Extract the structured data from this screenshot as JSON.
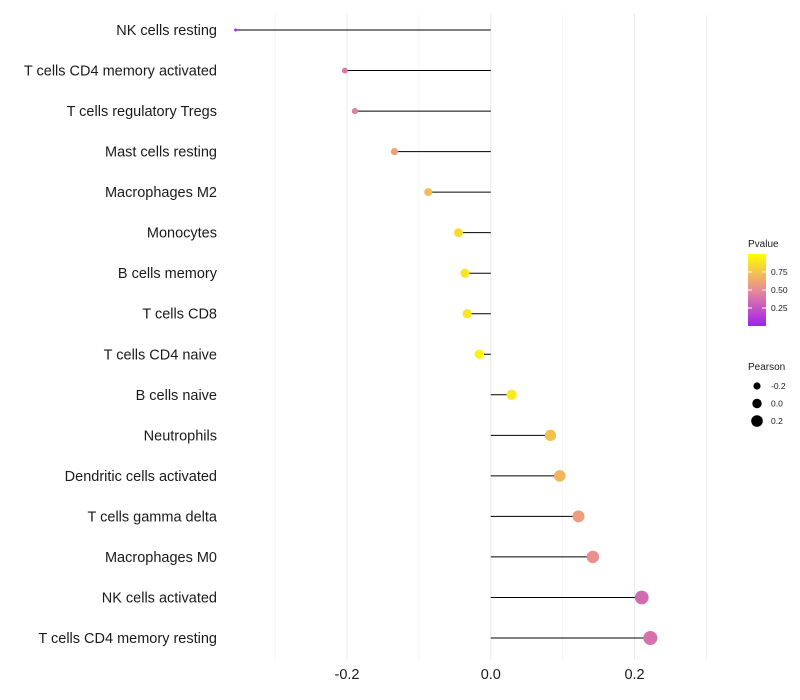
{
  "chart_data": {
    "type": "scatter",
    "subtype": "lollipop",
    "title": "",
    "xlabel": "",
    "ylabel": "",
    "xlim": [
      -0.36,
      0.33
    ],
    "x_ticks": [
      {
        "value": -0.2,
        "label": "-0.2"
      },
      {
        "value": 0.0,
        "label": "0.0"
      },
      {
        "value": 0.2,
        "label": "0.2"
      }
    ],
    "grid": true,
    "categories": [
      "NK cells resting",
      "T cells CD4 memory activated",
      "T cells regulatory  Tregs",
      "Mast cells resting",
      "Macrophages M2",
      "Monocytes",
      "B cells memory",
      "T cells CD8",
      "T cells CD4 naive",
      "B cells naive",
      "Neutrophils",
      "Dendritic cells activated",
      "T cells gamma delta",
      "Macrophages M0",
      "NK cells activated",
      "T cells CD4 memory resting"
    ],
    "pearson": [
      -0.355,
      -0.203,
      -0.189,
      -0.134,
      -0.087,
      -0.045,
      -0.036,
      -0.033,
      -0.016,
      0.029,
      0.083,
      0.096,
      0.122,
      0.142,
      0.21,
      0.222
    ],
    "pvalue": [
      0.05,
      0.4,
      0.45,
      0.6,
      0.72,
      0.85,
      0.88,
      0.89,
      0.95,
      0.91,
      0.74,
      0.69,
      0.58,
      0.53,
      0.35,
      0.38
    ],
    "legend": {
      "position": "right",
      "color": {
        "title": "Pvalue",
        "ticks": [
          {
            "value": 0.75,
            "label": "0.75"
          },
          {
            "value": 0.5,
            "label": "0.50"
          },
          {
            "value": 0.25,
            "label": "0.25"
          }
        ],
        "range": [
          0.0,
          1.0
        ],
        "low_color": "#a020f0",
        "high_color": "#ffff00"
      },
      "size": {
        "title": "Pearson",
        "entries": [
          {
            "value": -0.2,
            "label": "-0.2"
          },
          {
            "value": 0.0,
            "label": "0.0"
          },
          {
            "value": 0.2,
            "label": "0.2"
          }
        ]
      }
    }
  }
}
